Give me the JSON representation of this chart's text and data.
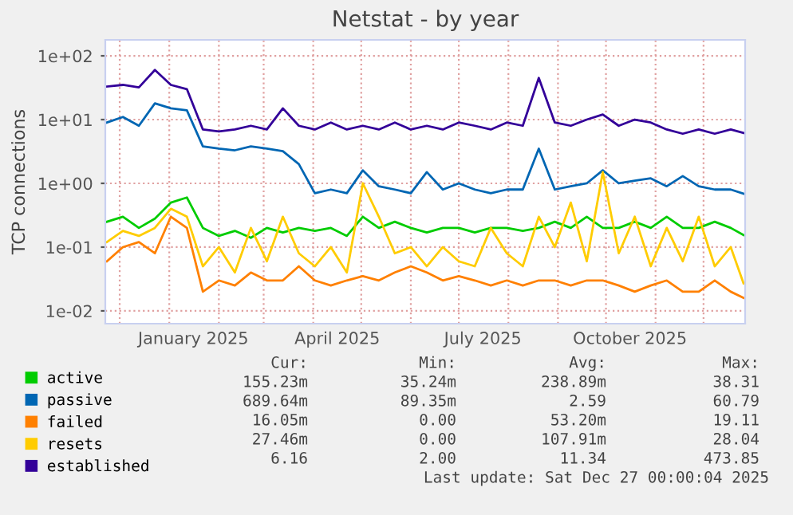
{
  "chart_data": {
    "type": "line",
    "title": "Netstat - by year",
    "ylabel": "TCP connections",
    "x": [
      "2024-11-23",
      "2024-12-03",
      "2024-12-13",
      "2024-12-23",
      "2025-01-02",
      "2025-01-12",
      "2025-01-22",
      "2025-02-01",
      "2025-02-11",
      "2025-02-21",
      "2025-03-03",
      "2025-03-13",
      "2025-03-23",
      "2025-04-02",
      "2025-04-12",
      "2025-04-22",
      "2025-05-02",
      "2025-05-12",
      "2025-05-22",
      "2025-06-01",
      "2025-06-11",
      "2025-06-21",
      "2025-07-01",
      "2025-07-11",
      "2025-07-21",
      "2025-07-31",
      "2025-08-10",
      "2025-08-20",
      "2025-08-30",
      "2025-09-09",
      "2025-09-19",
      "2025-09-29",
      "2025-10-09",
      "2025-10-19",
      "2025-10-29",
      "2025-11-08",
      "2025-11-18",
      "2025-11-28",
      "2025-12-08",
      "2025-12-18",
      "2025-12-26"
    ],
    "series": [
      {
        "name": "active",
        "color": "#00cc00",
        "values": [
          0.25,
          0.3,
          0.2,
          0.28,
          0.5,
          0.6,
          0.2,
          0.15,
          0.18,
          0.14,
          0.2,
          0.17,
          0.2,
          0.18,
          0.2,
          0.15,
          0.3,
          0.2,
          0.25,
          0.2,
          0.17,
          0.2,
          0.2,
          0.17,
          0.2,
          0.2,
          0.18,
          0.2,
          0.25,
          0.2,
          0.3,
          0.2,
          0.2,
          0.25,
          0.2,
          0.3,
          0.2,
          0.2,
          0.25,
          0.2,
          0.155
        ]
      },
      {
        "name": "passive",
        "color": "#0066b3",
        "values": [
          9,
          11,
          8,
          18,
          15,
          14,
          3.8,
          3.5,
          3.3,
          3.8,
          3.5,
          3.2,
          2,
          0.7,
          0.8,
          0.7,
          1.6,
          0.9,
          0.8,
          0.7,
          1.5,
          0.8,
          1,
          0.8,
          0.7,
          0.8,
          0.8,
          3.5,
          0.8,
          0.9,
          1,
          1.6,
          1,
          1.1,
          1.2,
          0.9,
          1.3,
          0.9,
          0.8,
          0.8,
          0.69
        ]
      },
      {
        "name": "failed",
        "color": "#ff8000",
        "values": [
          0.06,
          0.1,
          0.12,
          0.08,
          0.3,
          0.2,
          0.02,
          0.03,
          0.025,
          0.04,
          0.03,
          0.03,
          0.05,
          0.03,
          0.025,
          0.03,
          0.035,
          0.03,
          0.04,
          0.05,
          0.04,
          0.03,
          0.035,
          0.03,
          0.025,
          0.03,
          0.025,
          0.03,
          0.03,
          0.025,
          0.03,
          0.03,
          0.025,
          0.02,
          0.025,
          0.03,
          0.02,
          0.02,
          0.03,
          0.02,
          0.016
        ]
      },
      {
        "name": "resets",
        "color": "#ffcc00",
        "values": [
          0.12,
          0.18,
          0.15,
          0.2,
          0.4,
          0.3,
          0.05,
          0.1,
          0.04,
          0.2,
          0.06,
          0.3,
          0.08,
          0.05,
          0.1,
          0.04,
          1,
          0.3,
          0.08,
          0.1,
          0.05,
          0.1,
          0.06,
          0.05,
          0.2,
          0.08,
          0.05,
          0.3,
          0.1,
          0.5,
          0.06,
          1.5,
          0.08,
          0.3,
          0.05,
          0.2,
          0.06,
          0.3,
          0.05,
          0.1,
          0.027
        ]
      },
      {
        "name": "established",
        "color": "#330099",
        "values": [
          33,
          35,
          32,
          60,
          35,
          30,
          7,
          6.5,
          7,
          8,
          7,
          15,
          8,
          7,
          9,
          7,
          8,
          7,
          9,
          7,
          8,
          7,
          9,
          8,
          7,
          9,
          8,
          45,
          9,
          8,
          10,
          12,
          8,
          10,
          9,
          7,
          6,
          7,
          6,
          7,
          6.16
        ]
      }
    ],
    "log": "y",
    "ylim": [
      0.0063,
      178
    ],
    "yticks": [
      {
        "value": 0.01,
        "label": "1e-02"
      },
      {
        "value": 0.1,
        "label": "1e-01"
      },
      {
        "value": 1,
        "label": "1e+00"
      },
      {
        "value": 10,
        "label": "1e+01"
      },
      {
        "value": 100,
        "label": "1e+02"
      }
    ],
    "xlim": [
      "2024-11-22",
      "2025-12-27"
    ],
    "xticks": [
      {
        "value": "2024-12-01",
        "label": null
      },
      {
        "value": "2025-01-01",
        "label": null
      },
      {
        "value": "2025-01-16",
        "label": "January 2025"
      },
      {
        "value": "2025-02-01",
        "label": null
      },
      {
        "value": "2025-03-01",
        "label": null
      },
      {
        "value": "2025-04-01",
        "label": null
      },
      {
        "value": "2025-04-16",
        "label": "April 2025"
      },
      {
        "value": "2025-05-01",
        "label": null
      },
      {
        "value": "2025-06-01",
        "label": null
      },
      {
        "value": "2025-07-01",
        "label": null
      },
      {
        "value": "2025-07-16",
        "label": "July 2025"
      },
      {
        "value": "2025-08-01",
        "label": null
      },
      {
        "value": "2025-09-01",
        "label": null
      },
      {
        "value": "2025-10-01",
        "label": null
      },
      {
        "value": "2025-10-16",
        "label": "October 2025"
      },
      {
        "value": "2025-11-01",
        "label": null
      },
      {
        "value": "2025-12-01",
        "label": null
      }
    ],
    "grid": true,
    "legend": "bottom",
    "annotations": [
      "Cur:",
      "Min:",
      "Avg:",
      "Max:",
      "155.23m",
      "35.24m",
      "238.89m",
      "38.31",
      "689.64m",
      "89.35m",
      "2.59",
      "60.79",
      "16.05m",
      "0.00",
      "53.20m",
      "19.11",
      "27.46m",
      "0.00",
      "107.91m",
      "28.04",
      "6.16",
      "2.00",
      "11.34",
      "473.85",
      "Last update: Sat Dec 27 00:00:04 2025"
    ]
  }
}
